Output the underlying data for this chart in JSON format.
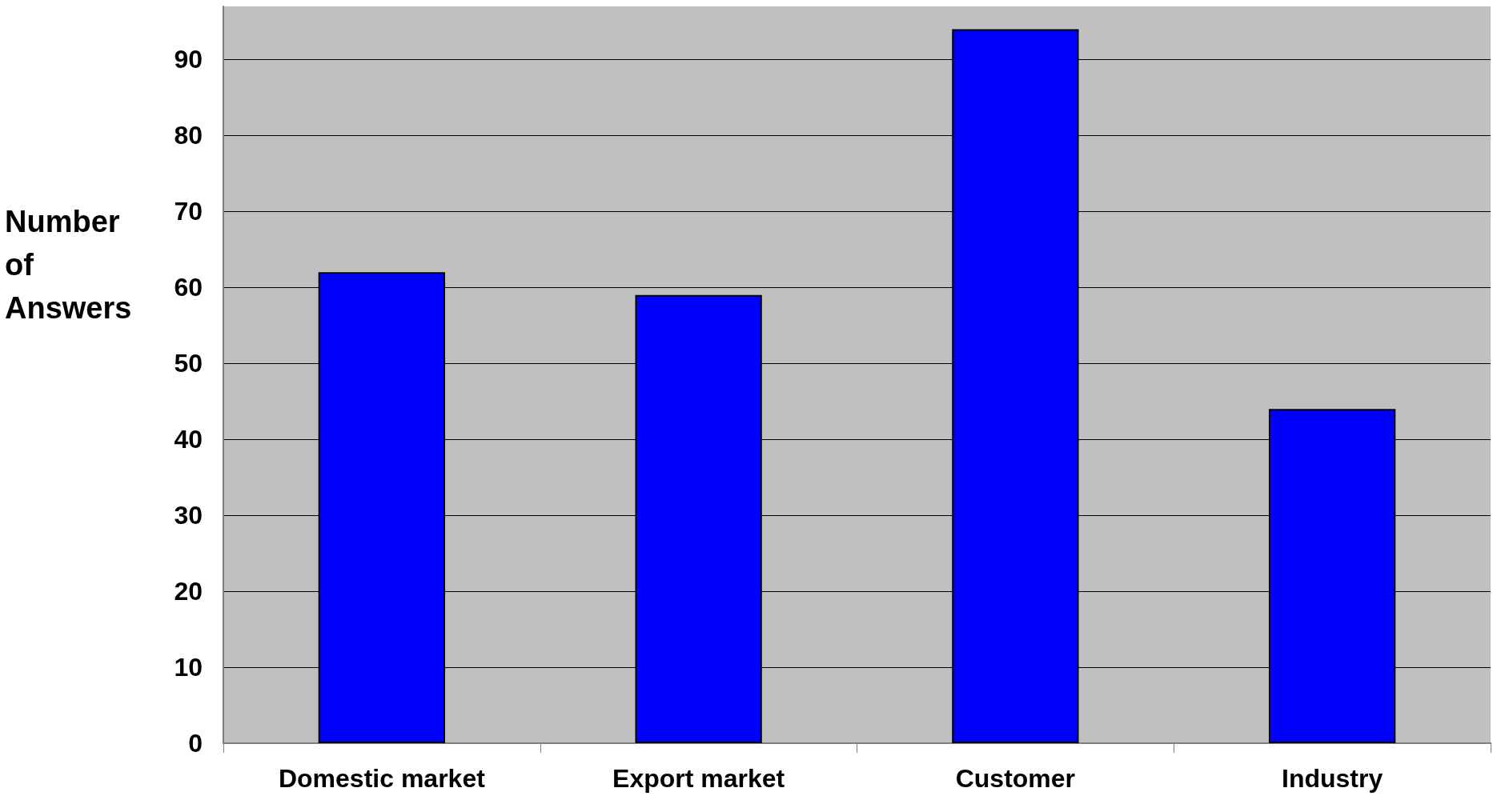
{
  "chart_data": {
    "type": "bar",
    "ylabel": "Number\nof\nAnswers",
    "categories": [
      "Domestic market",
      "Export market",
      "Customer",
      "Industry"
    ],
    "values": [
      62,
      59,
      94,
      44
    ],
    "color": "#0000ff",
    "ylim": [
      0,
      97
    ],
    "yticks": [
      0,
      10,
      20,
      30,
      40,
      50,
      60,
      70,
      80,
      90
    ],
    "grid": "y"
  }
}
